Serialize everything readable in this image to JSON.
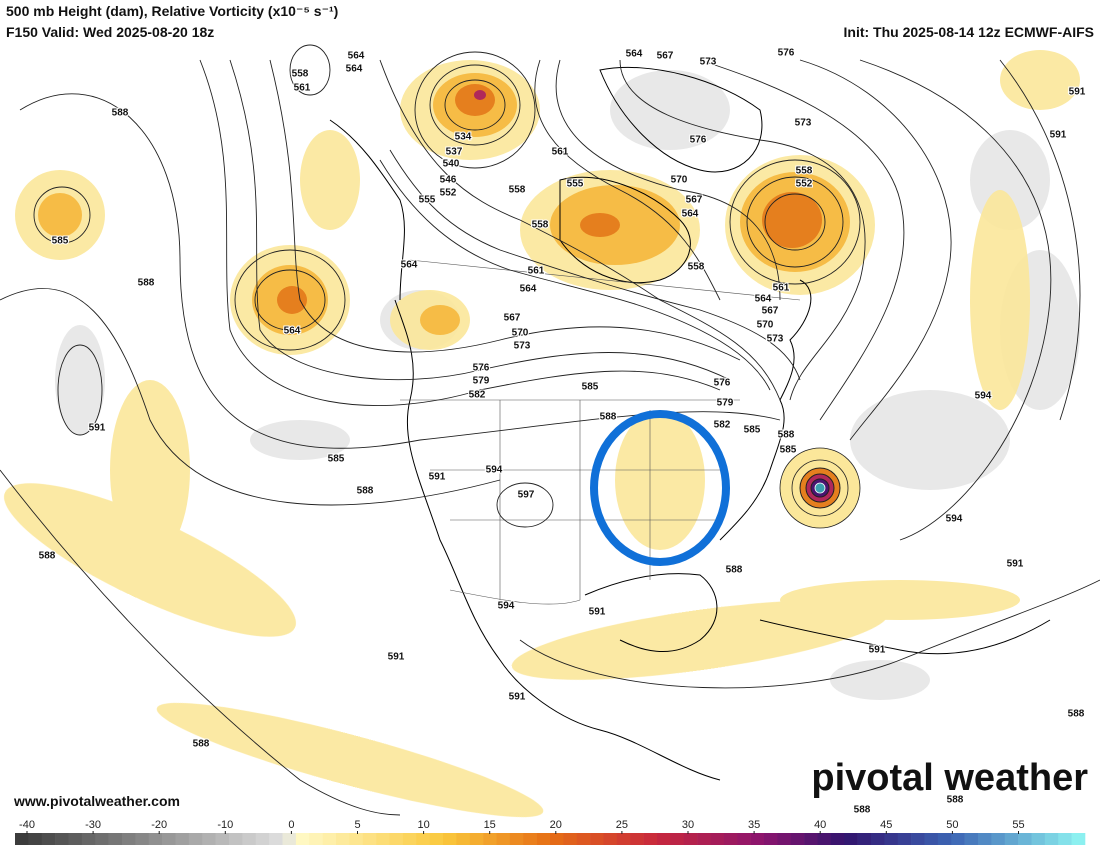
{
  "header": {
    "title": "500 mb Height (dam), Relative Vorticity (x10⁻⁵ s⁻¹)",
    "valid": "F150 Valid: Wed 2025-08-20 18z",
    "init": "Init: Thu 2025-08-14 12z ECMWF-AIFS"
  },
  "map": {
    "contour_labels": [
      564,
      564,
      558,
      561,
      588,
      534,
      537,
      540,
      546,
      552,
      555,
      558,
      555,
      561,
      564,
      567,
      573,
      576,
      591,
      591,
      573,
      576,
      570,
      567,
      564,
      558,
      552,
      585,
      588,
      564,
      564,
      558,
      561,
      564,
      567,
      570,
      573,
      576,
      579,
      582,
      585,
      588,
      558,
      561,
      564,
      567,
      570,
      573,
      576,
      579,
      582,
      585,
      594,
      591,
      585,
      588,
      591,
      594,
      597,
      594,
      588,
      585,
      588,
      591,
      588,
      594,
      591,
      591,
      591,
      591,
      588,
      588,
      588,
      588
    ]
  },
  "watermark": "pivotal weather",
  "footer": {
    "website": "www.pivotalweather.com"
  },
  "colorbar": {
    "ticks": [
      -40,
      -30,
      -20,
      -10,
      0,
      5,
      10,
      15,
      20,
      25,
      30,
      35,
      40,
      45,
      50,
      55
    ]
  }
}
